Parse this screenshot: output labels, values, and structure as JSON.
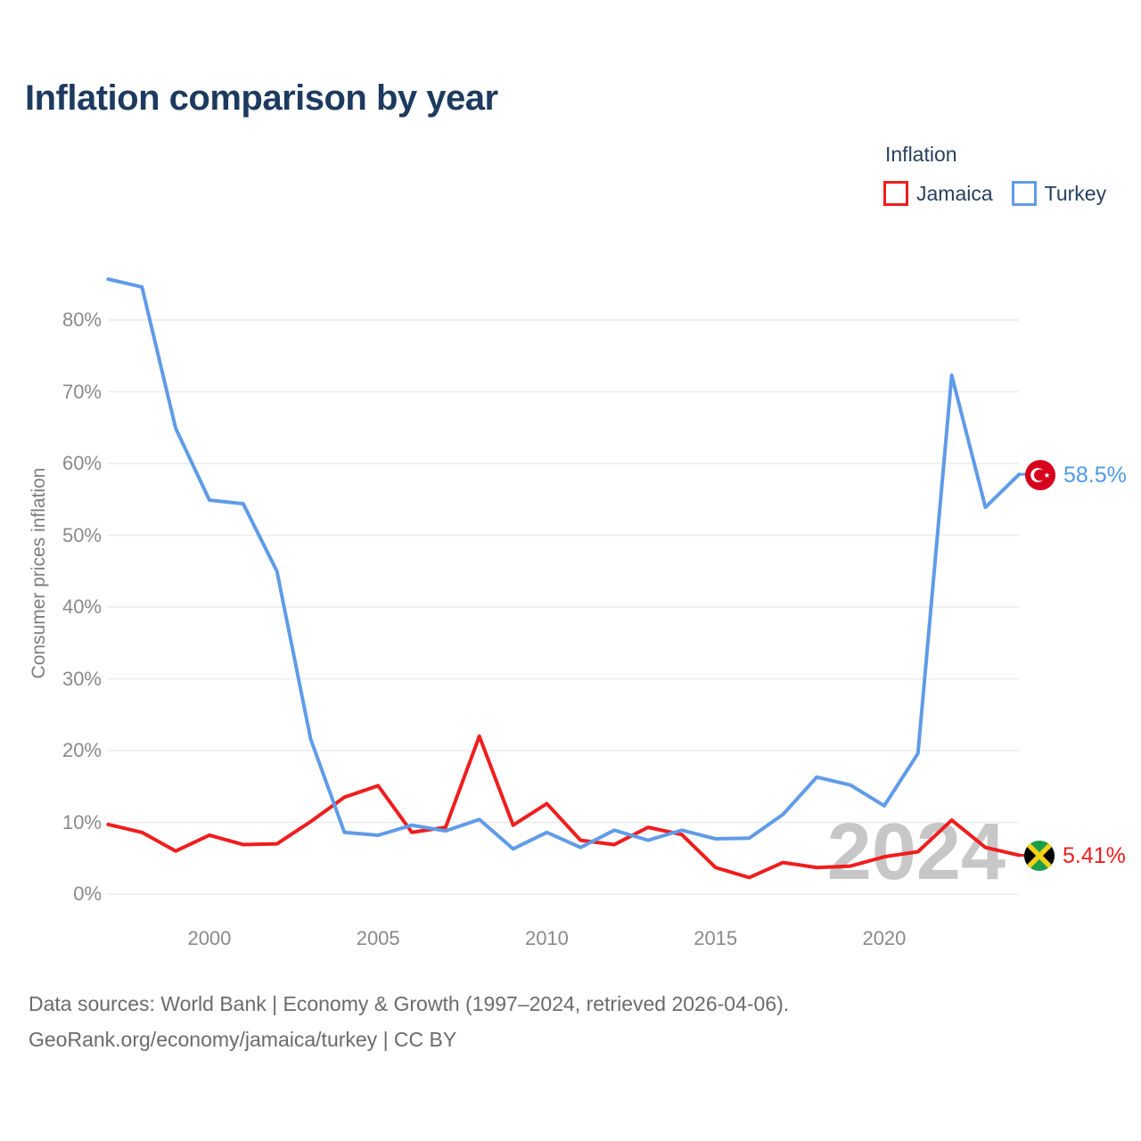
{
  "title": "Inflation comparison by year",
  "legend": {
    "title": "Inflation",
    "items": [
      {
        "label": "Jamaica",
        "color": "#f01d1d"
      },
      {
        "label": "Turkey",
        "color": "#5f9be8"
      }
    ]
  },
  "y_axis": {
    "label": "Consumer prices inflation",
    "tick_suffix": "%"
  },
  "x_axis": {
    "ticks": [
      2000,
      2005,
      2010,
      2015,
      2020
    ]
  },
  "watermark": "2024",
  "end_labels": {
    "turkey": {
      "value": "58.5%",
      "flag": "turkey-flag"
    },
    "jamaica": {
      "value": "5.41%",
      "flag": "jamaica-flag"
    }
  },
  "footer": {
    "line1": "Data sources: World Bank | Economy & Growth (1997–2024, retrieved 2026-04-06).",
    "line2": "GeoRank.org/economy/jamaica/turkey | CC BY"
  },
  "chart_data": {
    "type": "line",
    "title": "Inflation comparison by year",
    "ylabel": "Consumer prices inflation",
    "x": [
      1997,
      1998,
      1999,
      2000,
      2001,
      2002,
      2003,
      2004,
      2005,
      2006,
      2007,
      2008,
      2009,
      2010,
      2011,
      2012,
      2013,
      2014,
      2015,
      2016,
      2017,
      2018,
      2019,
      2020,
      2021,
      2022,
      2023,
      2024
    ],
    "series": [
      {
        "name": "Jamaica",
        "color": "#f01d1d",
        "values": [
          9.7,
          8.6,
          6.0,
          8.2,
          6.9,
          7.0,
          10.1,
          13.5,
          15.1,
          8.6,
          9.3,
          22.0,
          9.6,
          12.6,
          7.5,
          6.9,
          9.3,
          8.3,
          3.7,
          2.3,
          4.4,
          3.7,
          3.9,
          5.2,
          5.9,
          10.3,
          6.5,
          5.41
        ]
      },
      {
        "name": "Turkey",
        "color": "#5f9be8",
        "values": [
          85.7,
          84.6,
          64.9,
          54.9,
          54.4,
          45.0,
          21.6,
          8.6,
          8.2,
          9.6,
          8.8,
          10.4,
          6.3,
          8.6,
          6.5,
          8.9,
          7.5,
          8.9,
          7.7,
          7.8,
          11.1,
          16.3,
          15.2,
          12.3,
          19.6,
          72.3,
          53.9,
          58.5
        ]
      }
    ],
    "ylim": [
      0,
      88
    ],
    "y_ticks": [
      0,
      10,
      20,
      30,
      40,
      50,
      60,
      70,
      80
    ],
    "x_ticks": [
      2000,
      2005,
      2010,
      2015,
      2020
    ],
    "grid": "horizontal",
    "legend_position": "top-right"
  }
}
